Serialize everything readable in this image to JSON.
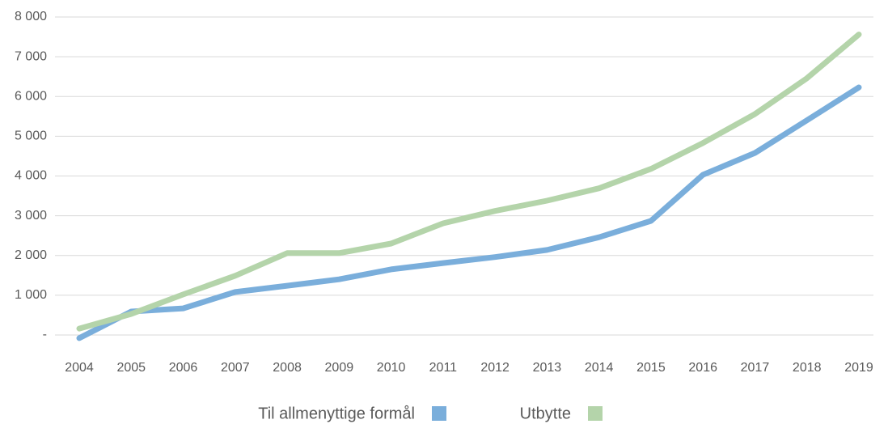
{
  "chart_data": {
    "type": "line",
    "categories": [
      "2004",
      "2005",
      "2006",
      "2007",
      "2008",
      "2009",
      "2010",
      "2011",
      "2012",
      "2013",
      "2014",
      "2015",
      "2016",
      "2017",
      "2018",
      "2019"
    ],
    "series": [
      {
        "name": "Til allmenyttige formål",
        "color": "#7aaedb",
        "values": [
          -80,
          590,
          670,
          1080,
          1240,
          1400,
          1650,
          1810,
          1960,
          2140,
          2460,
          2870,
          4030,
          4580,
          5400,
          6230
        ]
      },
      {
        "name": "Utbytte",
        "color": "#b4d4aa",
        "values": [
          160,
          530,
          1020,
          1490,
          2060,
          2060,
          2300,
          2810,
          3120,
          3380,
          3690,
          4180,
          4830,
          5560,
          6460,
          7560
        ]
      }
    ],
    "ylim": [
      0,
      8000
    ],
    "yticks": [
      {
        "value": 0,
        "label": "-"
      },
      {
        "value": 1000,
        "label": "1 000"
      },
      {
        "value": 2000,
        "label": "2 000"
      },
      {
        "value": 3000,
        "label": "3 000"
      },
      {
        "value": 4000,
        "label": "4 000"
      },
      {
        "value": 5000,
        "label": "5 000"
      },
      {
        "value": 6000,
        "label": "6 000"
      },
      {
        "value": 7000,
        "label": "7 000"
      },
      {
        "value": 8000,
        "label": "8 000"
      }
    ],
    "grid": true,
    "legend": "bottom"
  }
}
